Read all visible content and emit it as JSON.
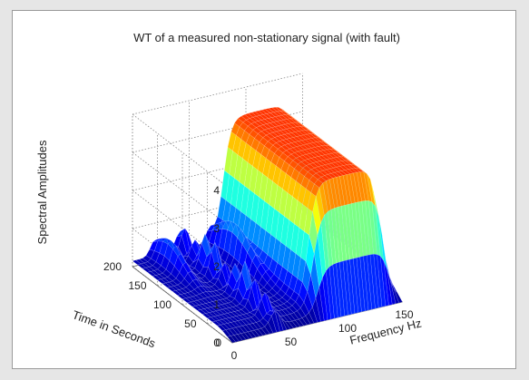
{
  "chart_data": {
    "type": "surface",
    "title": "WT of a measured non-stationary signal (with fault)",
    "zlabel": "Spectral Amplitudes",
    "ylabel": "Time in Seconds",
    "xlabel": "Frequency Hz",
    "zlim": [
      0,
      4
    ],
    "ylim": [
      0,
      200
    ],
    "xlim": [
      0,
      150
    ],
    "zticks": [
      "0",
      "1",
      "2",
      "3",
      "4"
    ],
    "yticks": [
      "0",
      "50",
      "100",
      "150",
      "200"
    ],
    "xticks": [
      "0",
      "50",
      "100",
      "150"
    ],
    "grid": true,
    "colormap": [
      "#00008f",
      "#0000ff",
      "#0080ff",
      "#00ffff",
      "#80ff80",
      "#ffff00",
      "#ff8000",
      "#ff0000"
    ]
  }
}
